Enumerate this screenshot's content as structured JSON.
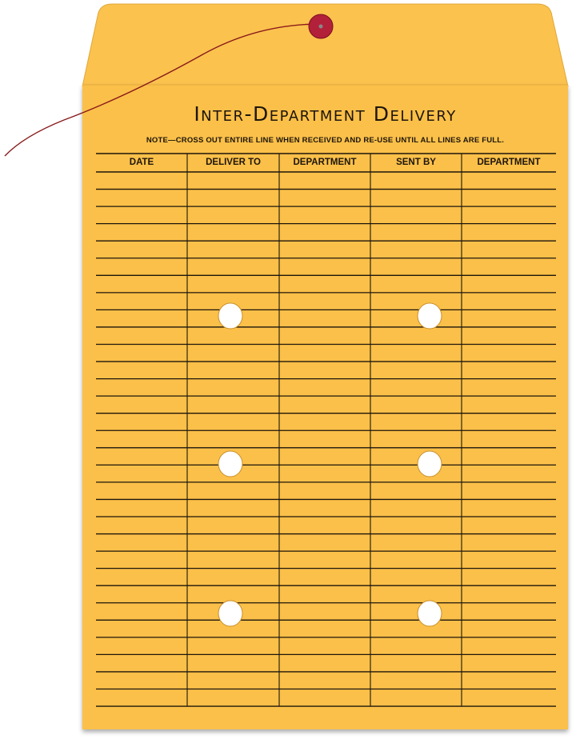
{
  "envelope": {
    "title": "Inter-Department Delivery",
    "note": "NOTE—CROSS OUT ENTIRE LINE WHEN RECEIVED AND RE-USE UNTIL ALL LINES ARE FULL.",
    "columns": [
      "DATE",
      "DELIVER TO",
      "DEPARTMENT",
      "SENT BY",
      "DEPARTMENT"
    ],
    "colors": {
      "paper": "#fbc04a",
      "flap": "#fbc24e",
      "string": "#8a1a1a",
      "button": "#b3203a",
      "ink": "#1d150c"
    }
  }
}
